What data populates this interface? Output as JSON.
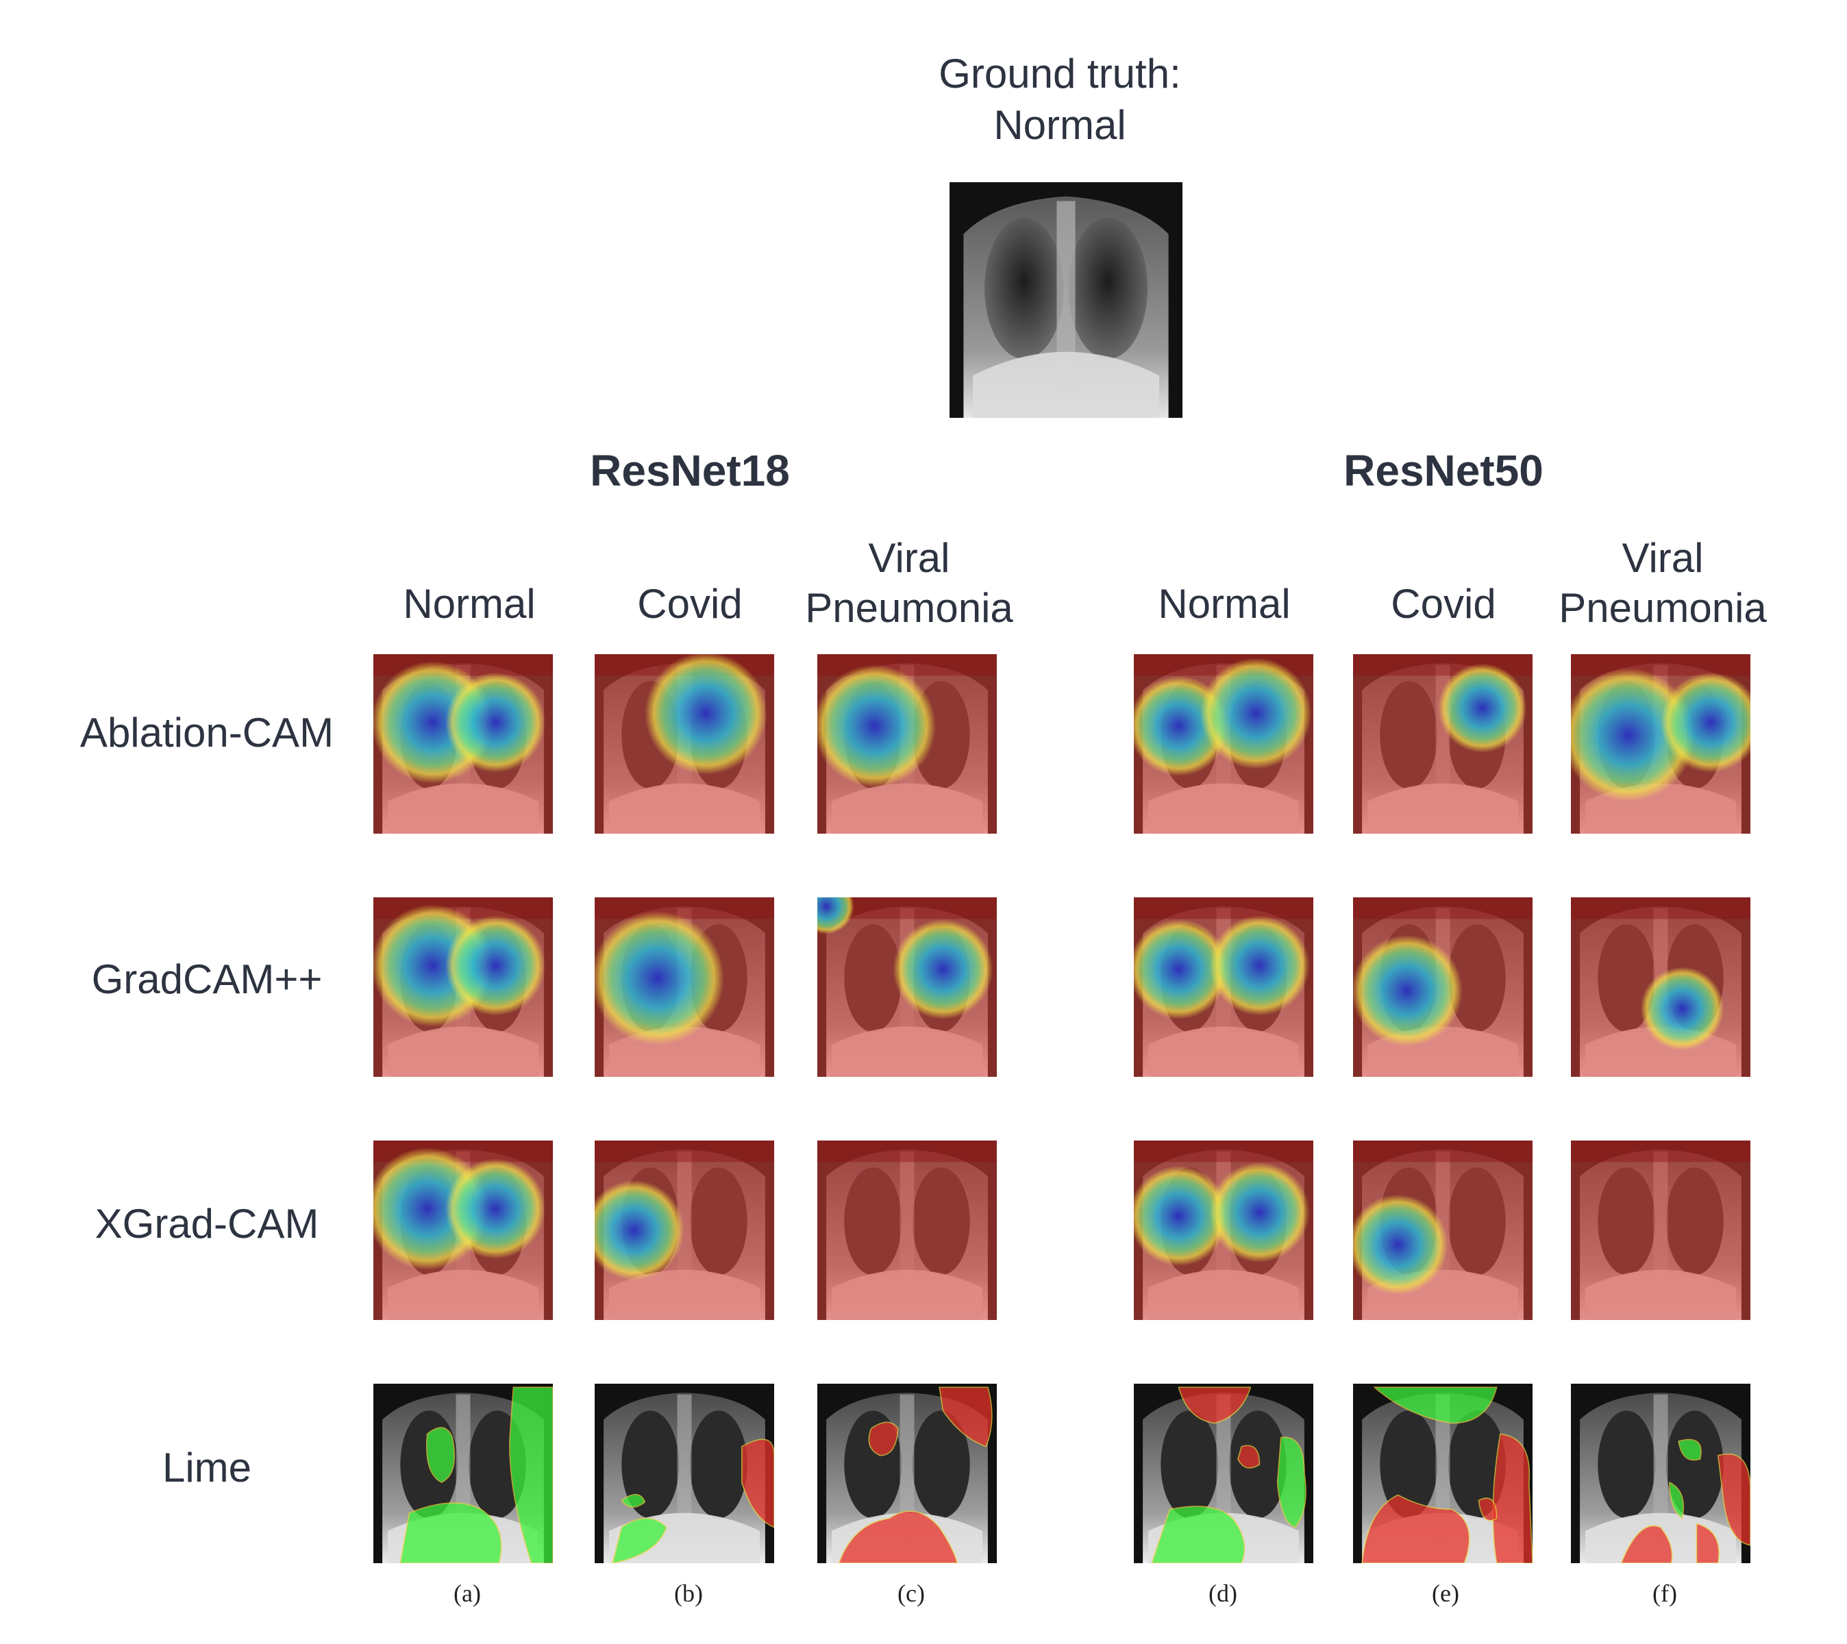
{
  "ground_truth": {
    "line1": "Ground truth:",
    "line2": "Normal"
  },
  "models": [
    {
      "name": "ResNet18",
      "columns": [
        "Normal",
        "Covid",
        "Viral Pneumonia"
      ],
      "captions": [
        "(a)",
        "(b)",
        "(c)"
      ]
    },
    {
      "name": "ResNet50",
      "columns": [
        "Normal",
        "Covid",
        "Viral Pneumonia"
      ],
      "captions": [
        "(d)",
        "(e)",
        "(f)"
      ]
    }
  ],
  "column_labels": {
    "viral_line1": "Viral",
    "viral_line2": "Pneumonia"
  },
  "methods": [
    "Ablation-CAM",
    "GradCAM++",
    "XGrad-CAM",
    "Lime"
  ],
  "colors": {
    "text": "#2d3340",
    "heat_low": "#2a2fc0",
    "heat_mid": "#f2e64a",
    "heat_high": "#e0443a",
    "lime_positive": "#3cf23c",
    "lime_negative": "#e8322a"
  }
}
